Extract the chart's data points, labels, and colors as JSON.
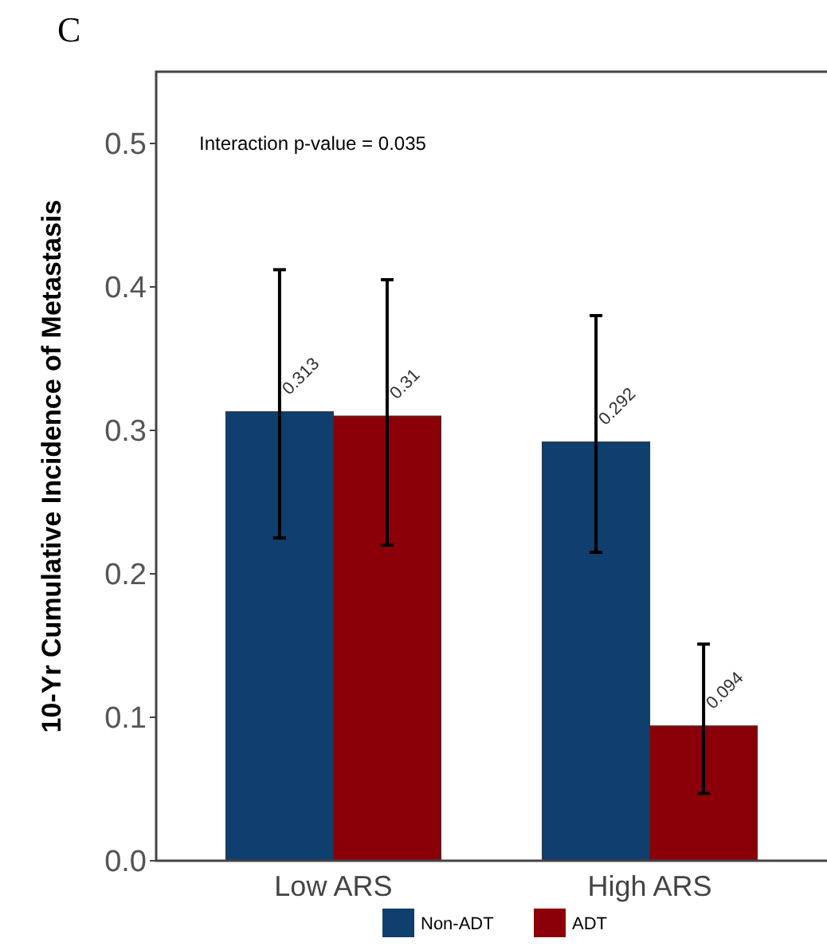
{
  "chart_data": {
    "type": "bar",
    "ylabel": "10-Yr Cumulative Incidence of Metastasis",
    "annotations": [
      "C",
      "Interaction p-value = 0.035"
    ],
    "categories": [
      "Low ARS",
      "High ARS"
    ],
    "series": [
      {
        "name": "Non-ADT",
        "color": "#0e3f6e",
        "values": [
          0.313,
          0.292
        ],
        "errors": [
          [
            0.225,
            0.412
          ],
          [
            0.215,
            0.38
          ]
        ]
      },
      {
        "name": "ADT",
        "color": "#8b0008",
        "values": [
          0.31,
          0.094
        ],
        "errors": [
          [
            0.22,
            0.405
          ],
          [
            0.047,
            0.151
          ]
        ]
      }
    ],
    "ylim": [
      0,
      0.55
    ],
    "yticks": [
      {
        "value": 0,
        "label": "0.0"
      },
      {
        "value": 0.1,
        "label": "0.1"
      },
      {
        "value": 0.2,
        "label": "0.2"
      },
      {
        "value": 0.3,
        "label": "0.3"
      },
      {
        "value": 0.4,
        "label": "0.4"
      },
      {
        "value": 0.5,
        "label": "0.5"
      }
    ],
    "grid": false,
    "legend": "bottom",
    "data_labels": true
  }
}
